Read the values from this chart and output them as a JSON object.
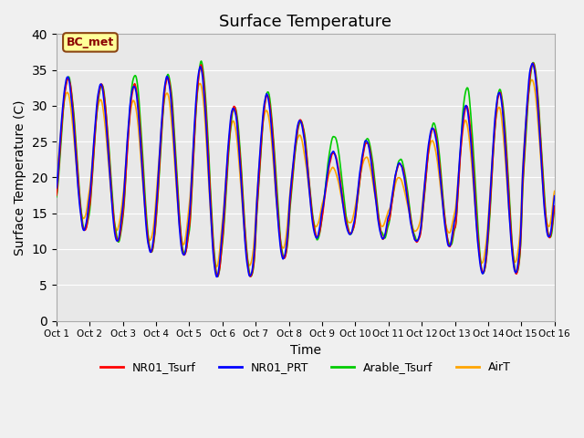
{
  "title": "Surface Temperature",
  "ylabel": "Surface Temperature (C)",
  "xlabel": "Time",
  "ylim": [
    0,
    40
  ],
  "yticks": [
    0,
    5,
    10,
    15,
    20,
    25,
    30,
    35,
    40
  ],
  "background_color": "#e8e8e8",
  "annotation_text": "BC_met",
  "annotation_facecolor": "#ffff99",
  "annotation_edgecolor": "#8b4513",
  "annotation_textcolor": "#8b0000",
  "xtick_labels": [
    "Oct 1",
    "Oct 2",
    "Oct 3",
    "Oct 4",
    "Oct 5",
    "Oct 6",
    "Oct 7",
    "Oct 8",
    "Oct 9",
    "Oct 10",
    "Oct 11",
    "Oct 12",
    "Oct 13",
    "Oct 14",
    "Oct 15",
    "Oct 16"
  ],
  "line_colors": {
    "NR01_Tsurf": "#ff0000",
    "NR01_PRT": "#0000ff",
    "Arable_Tsurf": "#00cc00",
    "AirT": "#ffa500"
  },
  "line_widths": {
    "NR01_Tsurf": 1.2,
    "NR01_PRT": 1.2,
    "Arable_Tsurf": 1.2,
    "AirT": 1.2
  },
  "n_days": 15,
  "points_per_day": 48,
  "day_peaks": [
    34,
    33,
    33,
    34,
    35.5,
    30,
    31.5,
    28,
    23.5,
    25,
    22,
    27,
    30,
    32,
    36
  ],
  "day_mins": [
    12.5,
    11,
    9.5,
    9,
    6,
    6,
    8.5,
    11.5,
    12,
    11.5,
    11,
    10.5,
    6.5,
    6.5,
    11.5
  ],
  "arable_extra_peaks": [
    34,
    33,
    34.5,
    34.5,
    36,
    30,
    32,
    28,
    26,
    25.5,
    22.5,
    27.5,
    32.5,
    32.5,
    36
  ],
  "figsize": [
    6.4,
    4.8
  ],
  "dpi": 100,
  "legend_entries": [
    "NR01_Tsurf",
    "NR01_PRT",
    "Arable_Tsurf",
    "AirT"
  ]
}
